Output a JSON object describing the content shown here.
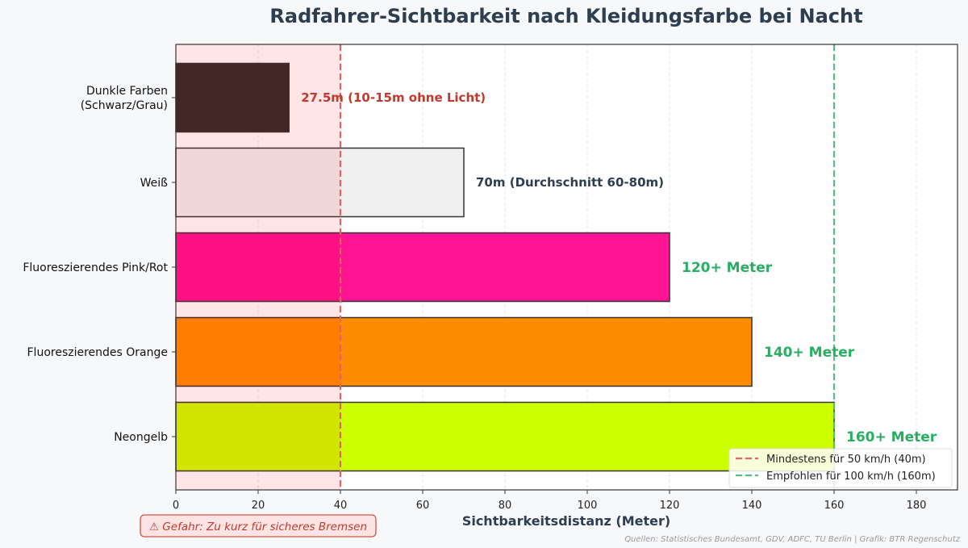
{
  "chart_data": {
    "type": "bar",
    "orientation": "horizontal",
    "title": "Radfahrer-Sichtbarkeit nach Kleidungsfarbe bei Nacht",
    "xlabel": "Sichtbarkeitsdistanz (Meter)",
    "ylabel": "",
    "xlim": [
      0,
      190
    ],
    "xticks": [
      0,
      20,
      40,
      60,
      80,
      100,
      120,
      140,
      160,
      180
    ],
    "grid": "vertical dashed",
    "categories": [
      "Dunkle Farben\n(Schwarz/Grau)",
      "Weiß",
      "Fluoreszierendes Pink/Rot",
      "Fluoreszierendes Orange",
      "Neongelb"
    ],
    "values": [
      27.5,
      70,
      120,
      140,
      160
    ],
    "bar_colors": [
      "#2e2b2b",
      "#f0f0f0",
      "#ff1493",
      "#ff8c00",
      "#ccff00"
    ],
    "data_labels": [
      "27.5m (10-15m ohne Licht)",
      "70m (Durchschnitt 60-80m)",
      "120+ Meter",
      "140+ Meter",
      "160+ Meter"
    ],
    "data_label_colors": [
      "#c0392b",
      "#2c3e50",
      "#27ae60",
      "#27ae60",
      "#27ae60"
    ],
    "danger_zone": {
      "from": 0,
      "to": 40,
      "color": "#ff0000"
    },
    "reference_lines": [
      {
        "x": 40,
        "label": "Mindestens für 50 km/h (40m)",
        "color": "#e06666"
      },
      {
        "x": 160,
        "label": "Empfohlen für 100 km/h (160m)",
        "color": "#52be80"
      }
    ],
    "legend_position": "bottom-right",
    "annotation": "⚠ Gefahr: Zu kurz für sicheres Bremsen",
    "source": "Quellen: Statistisches Bundesamt, GDV, ADFC, TU Berlin | Grafik: BTR Regenschutz"
  }
}
